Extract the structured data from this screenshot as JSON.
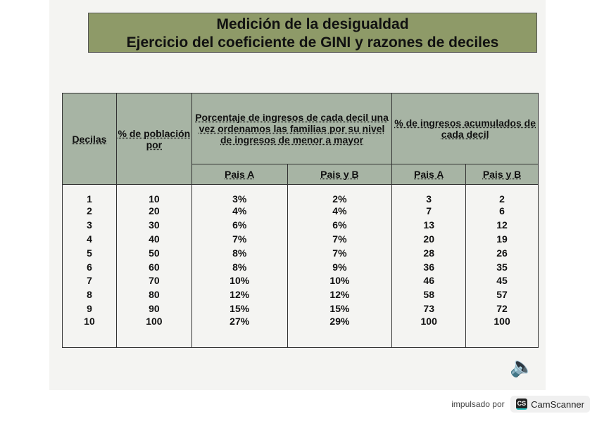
{
  "title": {
    "line1": "Medición de la desigualdad",
    "line2": "Ejercicio del coeficiente de GINI y razones de deciles"
  },
  "table": {
    "headers": {
      "decilas": "Decilas",
      "poblacion": "% de población por",
      "porcentaje": "Porcentaje de ingresos de cada decil una vez ordenamos las familias por su nivel de ingresos de menor a mayor",
      "acumulados": "% de ingresos acumulados de cada decil",
      "pais_a": "Pais  A",
      "pais_b": "Pais y B",
      "pais_a2": "Pais  A",
      "pais_b2": "Pais y B"
    },
    "rows": [
      [
        "1",
        "10",
        "3%",
        "2%",
        "3",
        "2"
      ],
      [
        "2",
        "20",
        "4%",
        "4%",
        "7",
        "6"
      ],
      [
        "3",
        "30",
        "6%",
        "6%",
        "13",
        "12"
      ],
      [
        "4",
        "40",
        "7%",
        "7%",
        "20",
        "19"
      ],
      [
        "5",
        "50",
        "8%",
        "7%",
        "28",
        "26"
      ],
      [
        "6",
        "60",
        "8%",
        "9%",
        "36",
        "35"
      ],
      [
        "7",
        "70",
        "10%",
        "10%",
        "46",
        "45"
      ],
      [
        "8",
        "80",
        "12%",
        "12%",
        "58",
        "57"
      ],
      [
        "9",
        "90",
        "15%",
        "15%",
        "73",
        "72"
      ],
      [
        "10",
        "100",
        "27%",
        "29%",
        "100",
        "100"
      ]
    ]
  },
  "footer": {
    "powered": "impulsado por",
    "brand": "CamScanner",
    "logo": "CS"
  },
  "icons": {
    "speaker": "speaker-icon"
  }
}
